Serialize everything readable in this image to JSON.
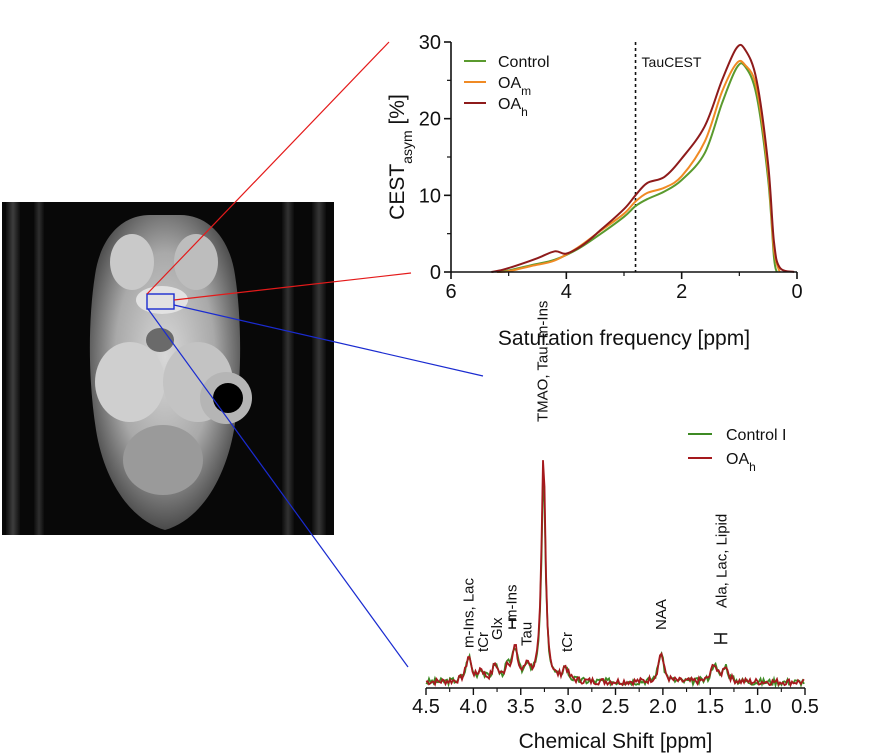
{
  "chart_data": [
    {
      "type": "line",
      "xlabel": "Saturation frequency [ppm]",
      "ylabel_main": "CEST",
      "ylabel_sub": "asym",
      "ylabel_unit": " [%]",
      "xlim": [
        6,
        0
      ],
      "ylim": [
        0,
        30
      ],
      "x_ticks": [
        6,
        4,
        2,
        0
      ],
      "y_ticks": [
        0,
        10,
        20,
        30
      ],
      "annotation": {
        "text": "TauCEST",
        "x": 2.8
      },
      "series": [
        {
          "name": "Control",
          "color": "#5a9a2e",
          "points": [
            [
              5.2,
              0
            ],
            [
              5.0,
              0.2
            ],
            [
              4.6,
              0.9
            ],
            [
              4.2,
              1.6
            ],
            [
              3.8,
              3.0
            ],
            [
              3.4,
              5.0
            ],
            [
              3.0,
              7.2
            ],
            [
              2.8,
              8.6
            ],
            [
              2.6,
              9.5
            ],
            [
              2.3,
              10.5
            ],
            [
              2.0,
              12.0
            ],
            [
              1.6,
              15.5
            ],
            [
              1.3,
              22.0
            ],
            [
              1.05,
              26.6
            ],
            [
              0.9,
              26.8
            ],
            [
              0.7,
              23.0
            ],
            [
              0.5,
              12.0
            ],
            [
              0.4,
              2.0
            ],
            [
              0.35,
              0
            ]
          ]
        },
        {
          "name": "OA",
          "sub": "m",
          "color": "#f08a24",
          "points": [
            [
              5.2,
              0
            ],
            [
              5.0,
              0.1
            ],
            [
              4.6,
              0.8
            ],
            [
              4.2,
              1.5
            ],
            [
              3.8,
              3.2
            ],
            [
              3.4,
              5.4
            ],
            [
              3.0,
              7.6
            ],
            [
              2.8,
              9.2
            ],
            [
              2.6,
              10.3
            ],
            [
              2.3,
              11.0
            ],
            [
              2.0,
              12.5
            ],
            [
              1.6,
              17.0
            ],
            [
              1.3,
              23.5
            ],
            [
              1.05,
              27.2
            ],
            [
              0.9,
              27.0
            ],
            [
              0.7,
              24.0
            ],
            [
              0.5,
              13.0
            ],
            [
              0.4,
              3.0
            ],
            [
              0.3,
              0
            ]
          ]
        },
        {
          "name": "OA",
          "sub": "h",
          "color": "#8e1b1b",
          "points": [
            [
              5.3,
              0
            ],
            [
              5.1,
              0.3
            ],
            [
              4.8,
              1.0
            ],
            [
              4.5,
              1.8
            ],
            [
              4.2,
              2.7
            ],
            [
              4.0,
              2.4
            ],
            [
              3.7,
              3.6
            ],
            [
              3.4,
              5.5
            ],
            [
              3.0,
              8.2
            ],
            [
              2.8,
              10.0
            ],
            [
              2.6,
              11.6
            ],
            [
              2.3,
              12.4
            ],
            [
              2.0,
              14.8
            ],
            [
              1.6,
              19.0
            ],
            [
              1.3,
              25.0
            ],
            [
              1.05,
              29.2
            ],
            [
              0.9,
              29.0
            ],
            [
              0.7,
              25.0
            ],
            [
              0.5,
              14.0
            ],
            [
              0.4,
              4.0
            ],
            [
              0.3,
              0.6
            ],
            [
              0.05,
              0
            ]
          ]
        }
      ]
    },
    {
      "type": "line",
      "xlabel": "Chemical Shift [ppm]",
      "xlim": [
        4.5,
        0.5
      ],
      "x_ticks": [
        "4.5",
        "4.0",
        "3.5",
        "3.0",
        "2.5",
        "2.0",
        "1.5",
        "1.0",
        "0.5"
      ],
      "series": [
        {
          "name": "Control I",
          "color": "#3d8a24"
        },
        {
          "name": "OA",
          "sub": "h",
          "color": "#a5191d"
        }
      ],
      "peaks": [
        {
          "x": 4.05,
          "h": 0.11
        },
        {
          "x": 3.92,
          "h": 0.05
        },
        {
          "x": 3.77,
          "h": 0.07
        },
        {
          "x": 3.64,
          "h": 0.06
        },
        {
          "x": 3.56,
          "h": 0.14
        },
        {
          "x": 3.43,
          "h": 0.07
        },
        {
          "x": 3.26,
          "h": 1.0
        },
        {
          "x": 3.03,
          "h": 0.06
        },
        {
          "x": 2.02,
          "h": 0.13
        },
        {
          "x": 1.46,
          "h": 0.08
        },
        {
          "x": 1.34,
          "h": 0.07
        }
      ],
      "labels": [
        {
          "text": "m-Ins, Lac",
          "x": 4.05
        },
        {
          "text": "tCr",
          "x": 3.9
        },
        {
          "text": "Glx",
          "x": 3.75
        },
        {
          "text": "m-Ins",
          "x": 3.6
        },
        {
          "text": "Tau",
          "x": 3.44
        },
        {
          "text": "TMAO, Tau, m-Ins",
          "x": 3.27
        },
        {
          "text": "tCr",
          "x": 3.01
        },
        {
          "text": "NAA",
          "x": 2.02
        },
        {
          "text": "Ala, Lac, Lipid",
          "x": 1.38
        }
      ]
    }
  ]
}
